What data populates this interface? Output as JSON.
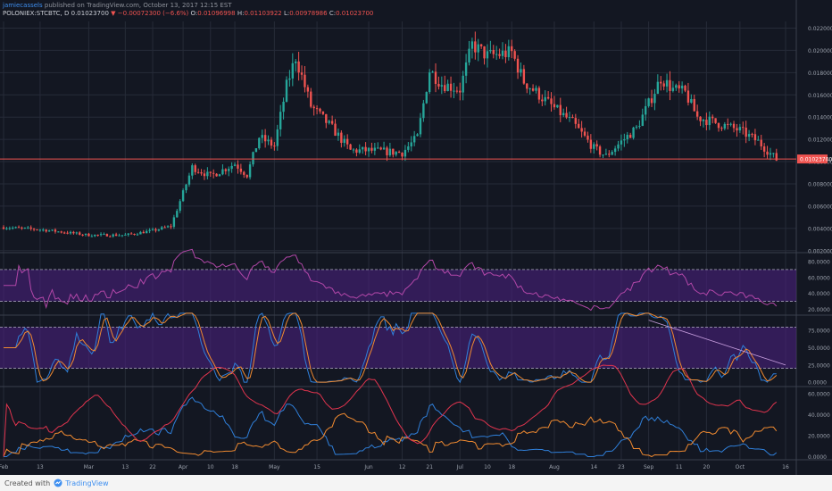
{
  "header": {
    "author": "jamiecassels",
    "published": "published on TradingView.com, October 13, 2017 12:15 EST",
    "symbol": "POLONIEX:STCBTC, D",
    "last": "0.01023700",
    "change": "−0.00072300 (−6.6%)",
    "o_label": "O:",
    "o": "0.01096998",
    "h_label": "H:",
    "h": "0.01103922",
    "l_label": "L:",
    "l": "0.00978986",
    "c_label": "C:",
    "c": "0.01023700"
  },
  "footer": {
    "created_with": "Created with",
    "brand": "TradingView"
  },
  "colors": {
    "background": "#131722",
    "grid": "#262b38",
    "up": "#26a69a",
    "down": "#ef5350",
    "rsi_band": "#4a1f7d",
    "rsi_line": "#b247a8",
    "stoch_k": "#2f7fd9",
    "stoch_d": "#f08a30",
    "plus_di": "#2f7fd9",
    "minus_di": "#f08a30",
    "adx": "#e0344e"
  },
  "chart_data": {
    "type": "candlestick",
    "price_axis_labels": [
      "0.02200000",
      "0.02000000",
      "0.01800000",
      "0.01600000",
      "0.01400000",
      "0.01200000",
      "0.01000000",
      "0.00800000",
      "0.00600000",
      "0.00400000",
      "0.00200000"
    ],
    "last_price_label": "0.01023700",
    "x_tick_labels": [
      {
        "label": "Feb",
        "date": "2017-02-01"
      },
      {
        "label": "13",
        "date": "2017-02-13"
      },
      {
        "label": "Mar",
        "date": "2017-03-01"
      },
      {
        "label": "13",
        "date": "2017-03-13"
      },
      {
        "label": "22",
        "date": "2017-03-22"
      },
      {
        "label": "Apr",
        "date": "2017-04-01"
      },
      {
        "label": "10",
        "date": "2017-04-10"
      },
      {
        "label": "18",
        "date": "2017-04-18"
      },
      {
        "label": "May",
        "date": "2017-05-01"
      },
      {
        "label": "15",
        "date": "2017-05-15"
      },
      {
        "label": "Jun",
        "date": "2017-06-01"
      },
      {
        "label": "12",
        "date": "2017-06-12"
      },
      {
        "label": "21",
        "date": "2017-06-21"
      },
      {
        "label": "Jul",
        "date": "2017-07-01"
      },
      {
        "label": "10",
        "date": "2017-07-10"
      },
      {
        "label": "18",
        "date": "2017-07-18"
      },
      {
        "label": "Aug",
        "date": "2017-08-01"
      },
      {
        "label": "14",
        "date": "2017-08-14"
      },
      {
        "label": "23",
        "date": "2017-08-23"
      },
      {
        "label": "Sep",
        "date": "2017-09-01"
      },
      {
        "label": "11",
        "date": "2017-09-11"
      },
      {
        "label": "20",
        "date": "2017-09-20"
      },
      {
        "label": "Oct",
        "date": "2017-10-01"
      },
      {
        "label": "16",
        "date": "2017-10-16"
      }
    ],
    "price_anchors": [
      {
        "date": "2017-02-01",
        "close": 0.0041
      },
      {
        "date": "2017-02-13",
        "close": 0.0039
      },
      {
        "date": "2017-03-01",
        "close": 0.0034
      },
      {
        "date": "2017-03-13",
        "close": 0.0034
      },
      {
        "date": "2017-03-22",
        "close": 0.0038
      },
      {
        "date": "2017-03-28",
        "close": 0.0042
      },
      {
        "date": "2017-04-01",
        "close": 0.0072
      },
      {
        "date": "2017-04-04",
        "close": 0.0095
      },
      {
        "date": "2017-04-10",
        "close": 0.0087
      },
      {
        "date": "2017-04-18",
        "close": 0.0098
      },
      {
        "date": "2017-04-22",
        "close": 0.0088
      },
      {
        "date": "2017-04-26",
        "close": 0.0122
      },
      {
        "date": "2017-05-01",
        "close": 0.0114
      },
      {
        "date": "2017-05-05",
        "close": 0.0168
      },
      {
        "date": "2017-05-08",
        "close": 0.0194
      },
      {
        "date": "2017-05-13",
        "close": 0.015
      },
      {
        "date": "2017-05-20",
        "close": 0.013
      },
      {
        "date": "2017-05-26",
        "close": 0.011
      },
      {
        "date": "2017-06-01",
        "close": 0.011
      },
      {
        "date": "2017-06-12",
        "close": 0.0108
      },
      {
        "date": "2017-06-17",
        "close": 0.0122
      },
      {
        "date": "2017-06-21",
        "close": 0.0182
      },
      {
        "date": "2017-06-25",
        "close": 0.017
      },
      {
        "date": "2017-07-01",
        "close": 0.0165
      },
      {
        "date": "2017-07-05",
        "close": 0.0205
      },
      {
        "date": "2017-07-10",
        "close": 0.0195
      },
      {
        "date": "2017-07-18",
        "close": 0.0198
      },
      {
        "date": "2017-07-22",
        "close": 0.0172
      },
      {
        "date": "2017-08-01",
        "close": 0.0148
      },
      {
        "date": "2017-08-07",
        "close": 0.0135
      },
      {
        "date": "2017-08-14",
        "close": 0.0112
      },
      {
        "date": "2017-08-18",
        "close": 0.0105
      },
      {
        "date": "2017-08-23",
        "close": 0.0118
      },
      {
        "date": "2017-08-28",
        "close": 0.013
      },
      {
        "date": "2017-09-01",
        "close": 0.0152
      },
      {
        "date": "2017-09-05",
        "close": 0.0175
      },
      {
        "date": "2017-09-09",
        "close": 0.0165
      },
      {
        "date": "2017-09-13",
        "close": 0.0162
      },
      {
        "date": "2017-09-17",
        "close": 0.014
      },
      {
        "date": "2017-09-23",
        "close": 0.0135
      },
      {
        "date": "2017-10-01",
        "close": 0.0128
      },
      {
        "date": "2017-10-07",
        "close": 0.0118
      },
      {
        "date": "2017-10-13",
        "close": 0.0102
      }
    ],
    "horizontal_line": 0.010237,
    "panels": {
      "rsi": {
        "axis_labels": [
          "80.0000",
          "60.0000",
          "40.0000",
          "20.0000"
        ],
        "band": [
          30,
          70
        ]
      },
      "stoch": {
        "axis_labels": [
          "75.0000",
          "50.0000",
          "25.0000",
          "0.0000"
        ],
        "band": [
          20,
          80
        ]
      },
      "dmi": {
        "axis_labels": [
          "60.0000",
          "40.0000",
          "20.0000",
          "0.0000"
        ]
      }
    }
  }
}
